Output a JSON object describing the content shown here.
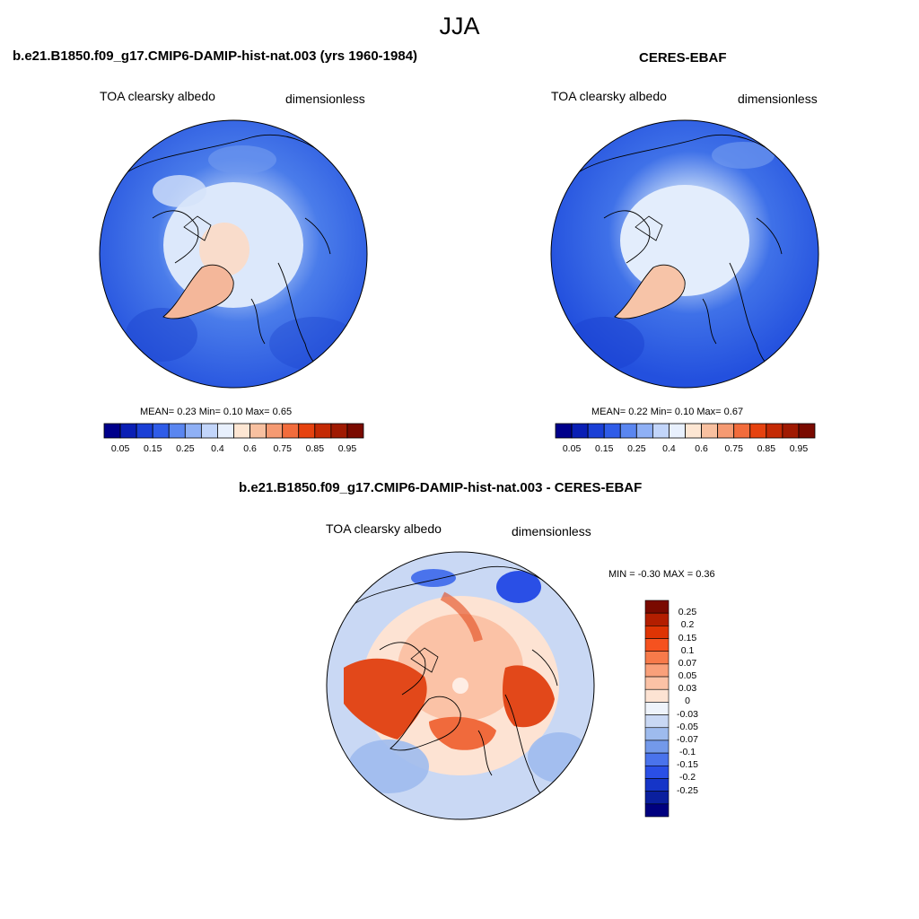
{
  "figure": {
    "season": "JJA"
  },
  "panels": {
    "model": {
      "title": "b.e21.B1850.f09_g17.CMIP6-DAMIP-hist-nat.003 (yrs 1960-1984)",
      "variable": "TOA clearsky albedo",
      "units": "dimensionless",
      "stats": "MEAN=   0.23  Min=    0.10  Max=    0.65"
    },
    "obs": {
      "title": "CERES-EBAF",
      "variable": "TOA clearsky albedo",
      "units": "dimensionless",
      "stats": "MEAN=   0.22  Min=    0.10  Max=    0.67"
    },
    "diff": {
      "title": "b.e21.B1850.f09_g17.CMIP6-DAMIP-hist-nat.003 - CERES-EBAF",
      "variable": "TOA clearsky albedo",
      "units": "dimensionless",
      "stats": "MIN =   -0.30 MAX =    0.36"
    }
  },
  "colorbar_abs": {
    "colors": [
      "#00008b",
      "#0a1fb5",
      "#1a3fd6",
      "#2f5ce8",
      "#5a86f0",
      "#8fb0f5",
      "#c2d5fa",
      "#e8f0fd",
      "#fde6d3",
      "#f8c0a0",
      "#f59a72",
      "#f26c3c",
      "#e6420f",
      "#c42a04",
      "#a01a02",
      "#7a0a00"
    ],
    "tick_labels": [
      "0.05",
      "0.15",
      "0.25",
      "0.4",
      "0.6",
      "0.75",
      "0.85",
      "0.95"
    ]
  },
  "colorbar_diff": {
    "colors": [
      "#7a0a00",
      "#b31e00",
      "#de3404",
      "#f5521f",
      "#f77a4a",
      "#f9a07a",
      "#fbc2a6",
      "#fde3d3",
      "#eef3fb",
      "#c9d8f4",
      "#9ebbee",
      "#7399ea",
      "#4a73ec",
      "#2a4fe6",
      "#1535c8",
      "#0a1f9e",
      "#00007f"
    ],
    "tick_labels": [
      "0.25",
      "0.2",
      "0.15",
      "0.1",
      "0.07",
      "0.05",
      "0.03",
      "0",
      "-0.03",
      "-0.05",
      "-0.07",
      "-0.1",
      "-0.15",
      "-0.2",
      "-0.25"
    ]
  }
}
